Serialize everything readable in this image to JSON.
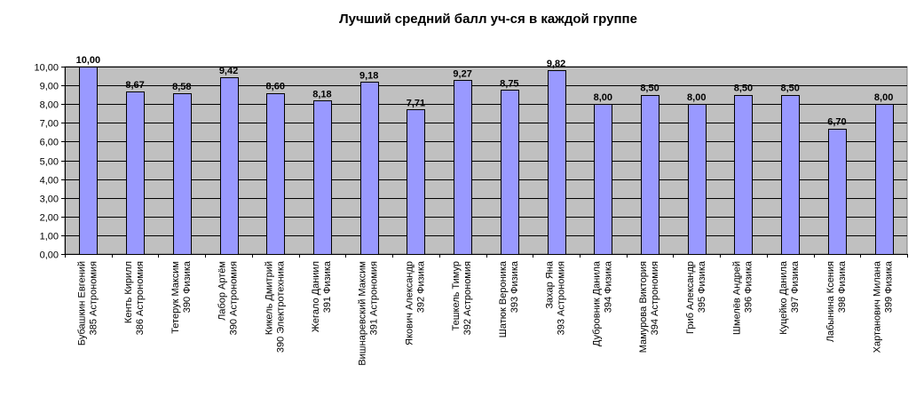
{
  "chart_data": {
    "type": "bar",
    "title": "Лучший средний балл уч-ся в каждой группе",
    "xlabel": "",
    "ylabel": "",
    "ylim": [
      0,
      10
    ],
    "grid": true,
    "legend": "none",
    "colors": {
      "bar": "#9999ff",
      "bar_stroke": "#000000",
      "plot_bg": "#c0c0c0",
      "grid": "#000000"
    },
    "yticks": [
      "0,00",
      "1,00",
      "2,00",
      "3,00",
      "4,00",
      "5,00",
      "6,00",
      "7,00",
      "8,00",
      "9,00",
      "10,00"
    ],
    "categories": [
      [
        "Бубашкин Евгений",
        "385 Астрономия"
      ],
      [
        "Кенть Кирилл",
        "386 Астрономия"
      ],
      [
        "Тетерук Максим",
        "390 Физика"
      ],
      [
        "Лабор Артём",
        "390 Астрономия"
      ],
      [
        "Кикель Дмитрий",
        "390 Электротехника"
      ],
      [
        "Жегало Даниил",
        "391 Физика"
      ],
      [
        "Вишнаревский Максим",
        "391 Астрономия"
      ],
      [
        "Якович Александр",
        "392 Физика"
      ],
      [
        "Тешкель Тимур",
        "392 Астрономия"
      ],
      [
        "Шатюк Вероника",
        "393 Физика"
      ],
      [
        "Захар Яна",
        "393 Астрономия"
      ],
      [
        "Дубровник Данила",
        "394 Физика"
      ],
      [
        "Мамурова Виктория",
        "394 Астрономия"
      ],
      [
        "Гриб Александр",
        "395 Физика"
      ],
      [
        "Шмелёв Андрей",
        "396 Физика"
      ],
      [
        "Куцейко Данила",
        "397 Физика"
      ],
      [
        "Лабынина Ксения",
        "398 Физика"
      ],
      [
        "Хартанович Милана",
        "399 Физика"
      ]
    ],
    "values": [
      10.0,
      8.67,
      8.58,
      9.42,
      8.6,
      8.18,
      9.18,
      7.71,
      9.27,
      8.75,
      9.82,
      8.0,
      8.5,
      8.0,
      8.5,
      8.5,
      6.7,
      8.0
    ],
    "value_labels": [
      "10,00",
      "8,67",
      "8,58",
      "9,42",
      "8,60",
      "8,18",
      "9,18",
      "7,71",
      "9,27",
      "8,75",
      "9,82",
      "8,00",
      "8,50",
      "8,00",
      "8,50",
      "8,50",
      "6,70",
      "8,00"
    ]
  }
}
